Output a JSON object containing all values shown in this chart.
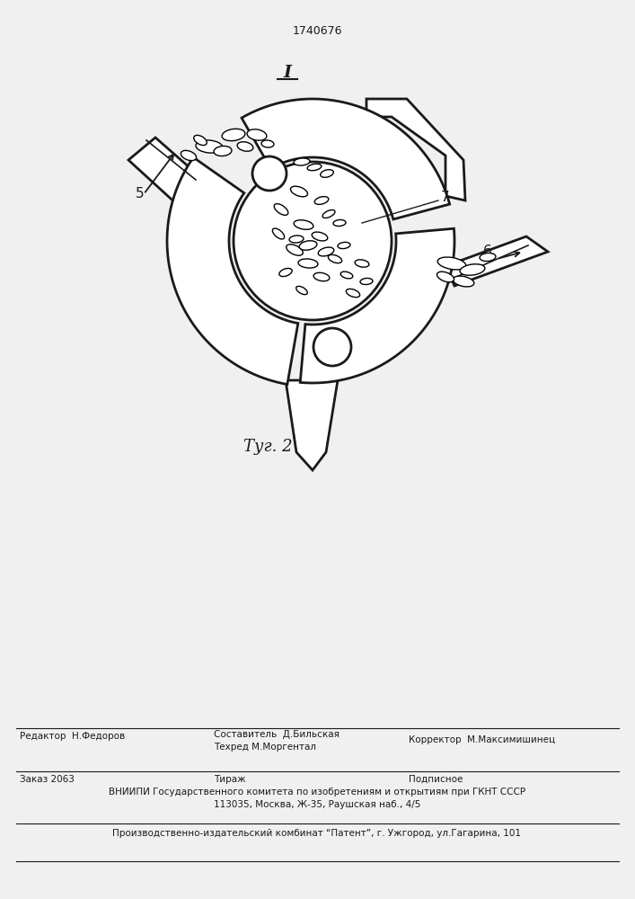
{
  "patent_number": "1740676",
  "fig_label": "I",
  "fig_caption": "Τуг. 2",
  "label_5": "5",
  "label_6": "6",
  "label_7": "7",
  "editor_left": "Редактор  Н.Федоров",
  "composer_top": "Составитель  Д.Бильская",
  "techred": "Техред М.Моргентал",
  "corrector": "Корректор  М.Максимишинец",
  "order": "Заказ 2063",
  "tirazh": "Тираж",
  "podpisnoe": "Подписное",
  "vniip": "ВНИИПИ Государственного комитета по изобретениям и открытиям при ГКНТ СССР",
  "address": "113035, Москва, Ж-35, Раушская наб., 4/5",
  "publisher": "Производственно-издательский комбинат “Патент”, г. Ужгород, ул.Гагарина, 101",
  "bg_color": "#f0f0f0",
  "lc": "#1a1a1a"
}
